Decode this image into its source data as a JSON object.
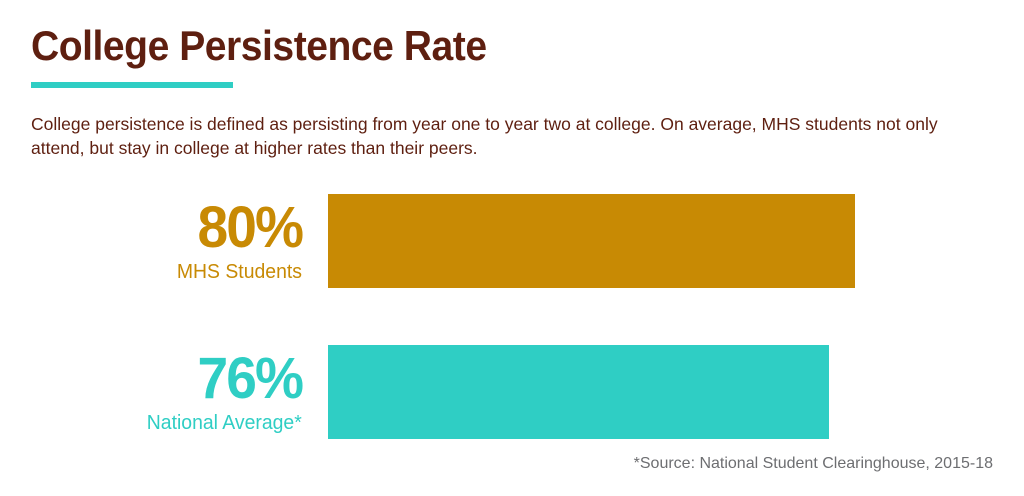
{
  "page": {
    "title": "College Persistence Rate",
    "description": "College persistence is defined as persisting from year one to year two at college. On average, MHS students not only attend, but stay in college at higher rates than their peers.",
    "source_note": "*Source: National Student Clearinghouse, 2015-18"
  },
  "colors": {
    "background": "#FFFFFF",
    "title_maroon": "#5E1F10",
    "body_maroon": "#5E1F10",
    "accent_teal": "#2FCEC4",
    "accent_gold": "#C88A04",
    "source_gray": "#6D6E71"
  },
  "chart_data": {
    "type": "bar",
    "orientation": "horizontal",
    "title": "College Persistence Rate",
    "categories": [
      "MHS Students",
      "National Average*"
    ],
    "values": [
      80,
      76
    ],
    "value_labels": [
      "80%",
      "76%"
    ],
    "bar_colors": [
      "#C88A04",
      "#2FCEC4"
    ],
    "unit": "percent",
    "xlim": [
      0,
      100
    ],
    "grid": false,
    "legend": false,
    "source": "*Source: National Student Clearinghouse, 2015-18"
  }
}
